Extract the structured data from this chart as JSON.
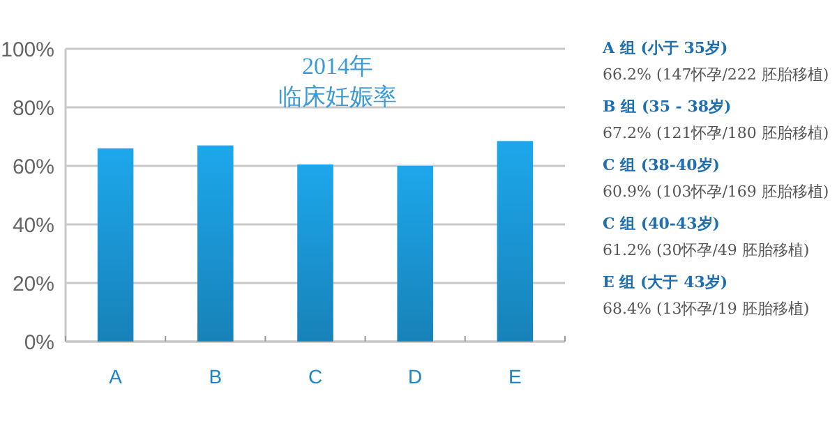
{
  "chart_data": {
    "type": "bar",
    "title": "2014年",
    "subtitle": "临床妊娠率",
    "categories": [
      "A",
      "B",
      "C",
      "D",
      "E"
    ],
    "values": [
      66,
      67,
      60.5,
      60,
      68.5
    ],
    "color": "#1a96d4",
    "ylim": [
      0,
      100
    ],
    "yticks": [
      {
        "value": 0,
        "label": "0%"
      },
      {
        "value": 20,
        "label": "20%"
      },
      {
        "value": 40,
        "label": "40%"
      },
      {
        "value": 60,
        "label": "60%"
      },
      {
        "value": 80,
        "label": "80%"
      },
      {
        "value": 100,
        "label": "100%"
      }
    ],
    "grid": "y",
    "annotations": [
      "A 组 (小于 35岁)",
      "66.2% (147怀孕/222 胚胎移植)",
      "B 组 (35 - 38岁)",
      "67.2% (121怀孕/180 胚胎移植)",
      "C 组 (38-40岁)",
      "60.9% (103怀孕/169 胚胎移植)",
      "C 组 (40-43岁)",
      "61.2% (30怀孕/49 胚胎移植)",
      "E 组 (大于 43岁)",
      "68.4% (13怀孕/19 胚胎移植)"
    ]
  }
}
